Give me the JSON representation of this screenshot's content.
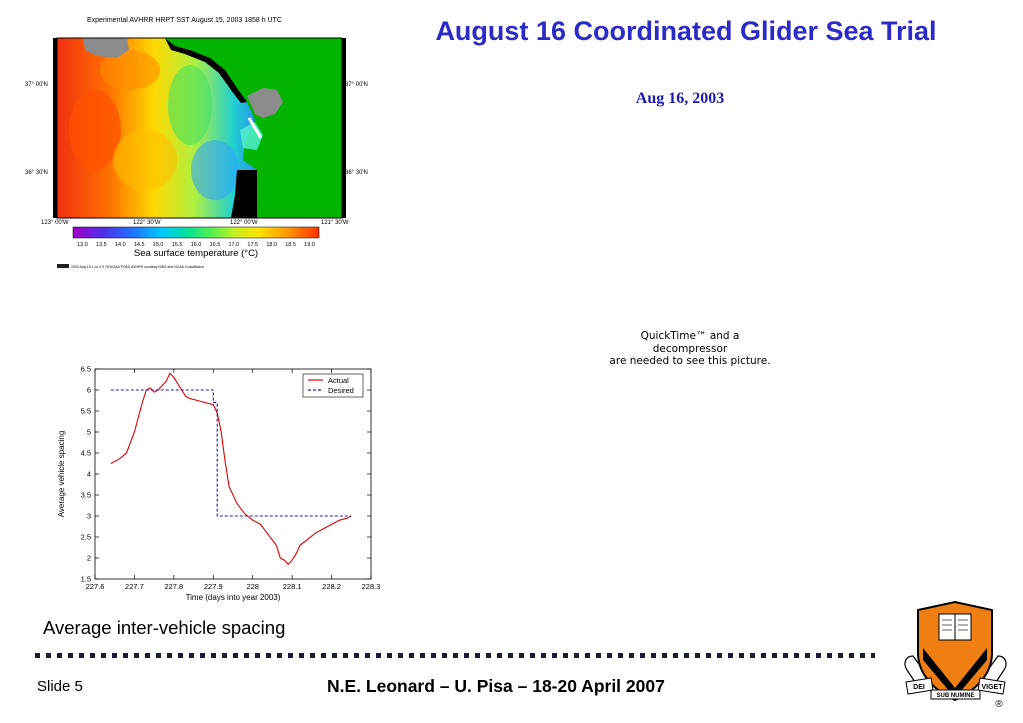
{
  "slide": {
    "title": "August 16 Coordinated Glider Sea Trial",
    "date": "Aug 16, 2003",
    "caption": "Average inter-vehicle spacing",
    "footer_slide": "Slide 5",
    "footer_credit": "N.E. Leonard – U. Pisa – 18-20 April 2007"
  },
  "quicktime": {
    "line1": "QuickTime™ and a",
    "line2": "decompressor",
    "line3": "are needed to see this picture."
  },
  "sst_map": {
    "title": "Experimental AVHRR HRPT SST August 15, 2003 1858 h UTC",
    "lat_labels": [
      "37° 00'N",
      "36° 30'N"
    ],
    "lon_labels": [
      "123° 00'W",
      "122° 30'W",
      "122° 00'W",
      "121° 30'W"
    ],
    "colorbar_ticks": [
      "13.0",
      "13.5",
      "14.0",
      "14.5",
      "15.0",
      "15.5",
      "16.0",
      "16.5",
      "17.0",
      "17.5",
      "18.0",
      "18.5",
      "19.0"
    ],
    "colorbar_label": "Sea surface temperature (°C)",
    "credit": "2003 Aug 15 1 ox 4 5 78    NOAA POES AVHRR courtesy NWS and NCAA CoastWatch",
    "colors": {
      "land": "#00b400",
      "cloud": "#8c8c8c",
      "nodata": "#000000"
    }
  },
  "logo": {
    "motto_left": "DEI",
    "motto_mid": "SUB NUMINE",
    "motto_right": "VIGET",
    "registered": "®",
    "colors": {
      "orange": "#f07f13",
      "black": "#000000"
    }
  },
  "chart_data": {
    "type": "line",
    "title": "",
    "xlabel": "Time (days into year 2003)",
    "ylabel": "Average vehicle spacing",
    "xlim": [
      227.6,
      228.3
    ],
    "ylim": [
      1.5,
      6.5
    ],
    "xticks": [
      227.6,
      227.7,
      227.8,
      227.9,
      228,
      228.1,
      228.2,
      228.3
    ],
    "xtick_labels": [
      "227.6",
      "227.7",
      "227.8",
      "227.9",
      "228",
      "228.1",
      "228.2",
      "228.3"
    ],
    "yticks": [
      1.5,
      2,
      2.5,
      3,
      3.5,
      4,
      4.5,
      5,
      5.5,
      6,
      6.5
    ],
    "ytick_labels": [
      "1.5",
      "2",
      "2.5",
      "3",
      "3.5",
      "4",
      "4.5",
      "5",
      "5.5",
      "6",
      "6.5"
    ],
    "grid": false,
    "legend_position": "top-right",
    "series": [
      {
        "name": "Actual",
        "color": "#e00000",
        "style": "solid",
        "x": [
          227.64,
          227.66,
          227.68,
          227.7,
          227.72,
          227.73,
          227.74,
          227.75,
          227.76,
          227.77,
          227.78,
          227.79,
          227.8,
          227.81,
          227.82,
          227.83,
          227.84,
          227.86,
          227.88,
          227.9,
          227.91,
          227.92,
          227.93,
          227.94,
          227.96,
          227.98,
          228.0,
          228.02,
          228.04,
          228.06,
          228.07,
          228.08,
          228.09,
          228.1,
          228.11,
          228.12,
          228.14,
          228.16,
          228.18,
          228.2,
          228.22,
          228.24,
          228.25
        ],
        "y": [
          4.25,
          4.35,
          4.5,
          5.0,
          5.7,
          6.0,
          6.05,
          5.95,
          6.0,
          6.1,
          6.2,
          6.4,
          6.3,
          6.15,
          6.0,
          5.85,
          5.8,
          5.75,
          5.7,
          5.65,
          5.45,
          5.0,
          4.3,
          3.7,
          3.3,
          3.05,
          2.9,
          2.8,
          2.55,
          2.3,
          2.0,
          1.95,
          1.85,
          1.95,
          2.1,
          2.3,
          2.45,
          2.6,
          2.7,
          2.8,
          2.9,
          2.95,
          3.0
        ]
      },
      {
        "name": "Desired",
        "color": "#1f1fa8",
        "style": "dashed",
        "x": [
          227.64,
          227.9,
          227.9,
          227.91,
          227.91,
          228.25
        ],
        "y": [
          6.0,
          6.0,
          5.7,
          5.7,
          3.0,
          3.0
        ]
      }
    ]
  }
}
